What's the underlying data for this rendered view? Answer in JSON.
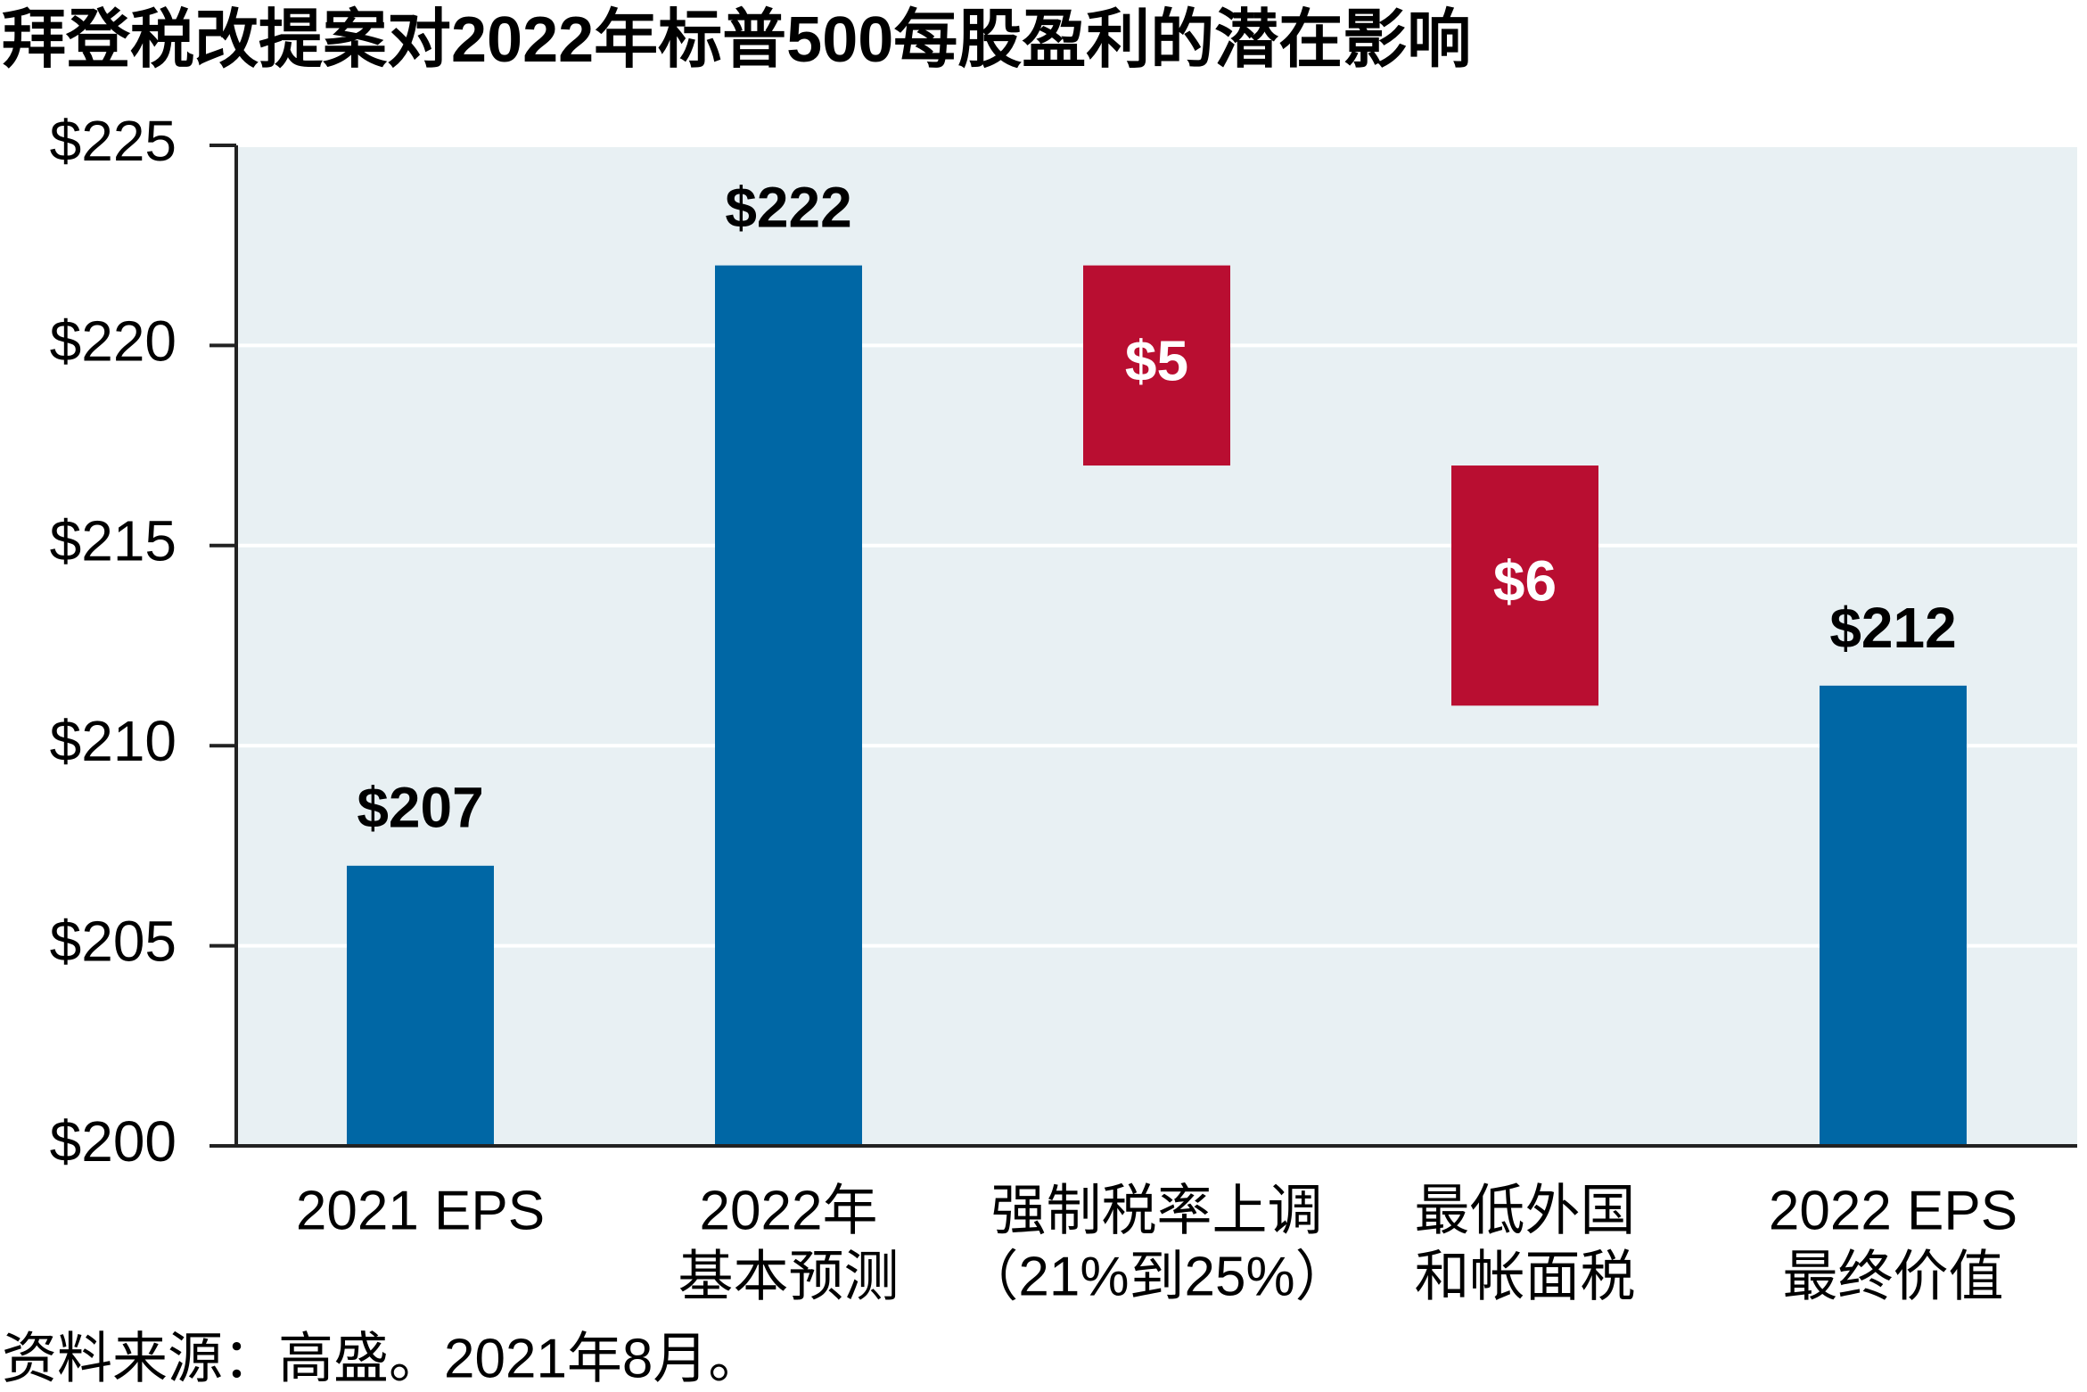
{
  "chart_data": {
    "type": "waterfall",
    "title": "拜登税改提案对2022年标普500每股盈利的潜在影响",
    "categories": [
      [
        "2021 EPS"
      ],
      [
        "2022年",
        "基本预测"
      ],
      [
        "强制税率上调",
        "（21%到25%）"
      ],
      [
        "最低外国",
        "和帐面税"
      ],
      [
        "2022 EPS",
        "最终价值"
      ]
    ],
    "values": [
      207,
      222,
      5,
      6,
      211.5
    ],
    "value_labels": [
      "$207",
      "$222",
      "$5",
      "$6",
      "$212"
    ],
    "steps": [
      "total",
      "total",
      "decrease",
      "decrease",
      "total"
    ],
    "colors": [
      "#0067a5",
      "#0067a5",
      "#b90e31",
      "#b90e31",
      "#0067a5"
    ],
    "ylim": [
      200,
      225
    ],
    "yticks": [
      {
        "value": 200,
        "label": "$200"
      },
      {
        "value": 205,
        "label": "$205"
      },
      {
        "value": 210,
        "label": "$210"
      },
      {
        "value": 215,
        "label": "$215"
      },
      {
        "value": 220,
        "label": "$220"
      },
      {
        "value": 225,
        "label": "$225"
      }
    ],
    "grid": true,
    "source": "资料来源：高盛。2021年8月。"
  }
}
